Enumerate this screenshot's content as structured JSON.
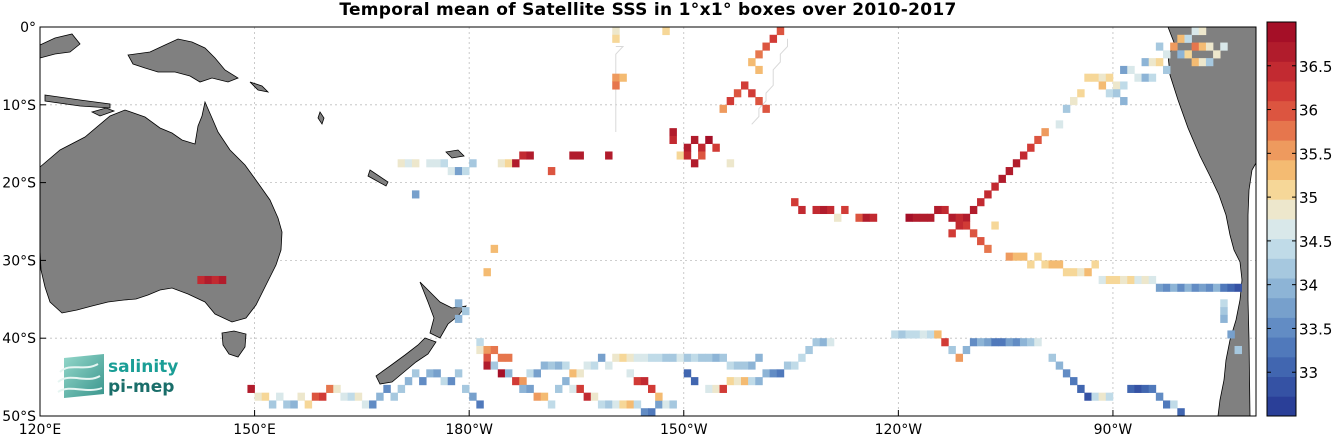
{
  "title": "Temporal mean of Satellite SSS in 1°x1° boxes over 2010-2017",
  "map": {
    "lon_range": [
      120,
      290
    ],
    "lat_range": [
      -50,
      0
    ],
    "x_ticks": [
      {
        "lon": 120,
        "label": "120°E"
      },
      {
        "lon": 150,
        "label": "150°E"
      },
      {
        "lon": 180,
        "label": "180°W"
      },
      {
        "lon": 210,
        "label": "150°W"
      },
      {
        "lon": 240,
        "label": "120°W"
      },
      {
        "lon": 270,
        "label": "90°W"
      }
    ],
    "y_ticks": [
      {
        "lat": 0,
        "label": "0°"
      },
      {
        "lat": -10,
        "label": "10°S"
      },
      {
        "lat": -20,
        "label": "20°S"
      },
      {
        "lat": -30,
        "label": "30°S"
      },
      {
        "lat": -40,
        "label": "40°S"
      },
      {
        "lat": -50,
        "label": "50°S"
      }
    ],
    "grid": true,
    "land_color": "#808080",
    "ocean_color": "#ffffff"
  },
  "colorbar": {
    "min": 32.5,
    "max": 37.0,
    "ticks": [
      "33",
      "33.5",
      "34",
      "34.5",
      "35",
      "35.5",
      "36",
      "36.5"
    ],
    "colors": [
      "#2a3f98",
      "#3552a4",
      "#4166b0",
      "#5079bb",
      "#628cc4",
      "#77a0cc",
      "#8db4d6",
      "#a6c8df",
      "#c0dbe8",
      "#d9e8ea",
      "#ede7cc",
      "#f6d798",
      "#f4bb72",
      "#ee9a5e",
      "#e6764d",
      "#dc5540",
      "#d13b36",
      "#c22a31",
      "#b11c2c",
      "#a50f27"
    ]
  },
  "logo": {
    "line1": "salinity",
    "line2": "pi-mep"
  },
  "tracks": [
    [
      [
        122.5,
        -1.5
      ],
      [
        123.5,
        -1.5
      ]
    ],
    [
      [
        200.5,
        -2.5
      ],
      [
        201.5,
        -2.5
      ],
      [
        200.5,
        -3.5
      ],
      [
        200.5,
        -4.5
      ],
      [
        200.5,
        -5.5
      ],
      [
        200.5,
        -6.5
      ],
      [
        200.5,
        -7.5
      ],
      [
        200.5,
        -8.5
      ],
      [
        200.5,
        -9.5
      ],
      [
        200.5,
        -10.5
      ],
      [
        200.5,
        -11.5
      ],
      [
        200.5,
        -12.5
      ],
      [
        200.5,
        -13.5
      ]
    ],
    [
      [
        224.5,
        -1.5
      ],
      [
        224.5,
        -2.5
      ],
      [
        223.5,
        -3.5
      ],
      [
        223.5,
        -4.5
      ],
      [
        222.5,
        -5.5
      ],
      [
        222.5,
        -6.5
      ],
      [
        222.5,
        -7.5
      ],
      [
        221.5,
        -8.5
      ],
      [
        221.5,
        -9.5
      ],
      [
        220.5,
        -10.5
      ],
      [
        220.5,
        -11.5
      ],
      [
        219.5,
        -12.5
      ]
    ]
  ],
  "cells": [
    [
      200.5,
      -0.5,
      34.9
    ],
    [
      200.5,
      -1.5,
      35.1
    ],
    [
      207.5,
      -0.5,
      35.0
    ],
    [
      200.5,
      -6.5,
      35.6
    ],
    [
      200.5,
      -7.5,
      35.8
    ],
    [
      201.5,
      -6.5,
      35.4
    ],
    [
      223.5,
      -0.5,
      36.0
    ],
    [
      222.5,
      -1.5,
      36.1
    ],
    [
      221.5,
      -2.5,
      36.0
    ],
    [
      220.5,
      -3.5,
      35.7
    ],
    [
      219.5,
      -4.5,
      35.2
    ],
    [
      220.5,
      -5.5,
      35.4
    ],
    [
      218.5,
      -7.5,
      36.1
    ],
    [
      217.5,
      -8.5,
      36.0
    ],
    [
      216.5,
      -9.5,
      36.2
    ],
    [
      215.5,
      -10.5,
      35.6
    ],
    [
      219.5,
      -8.5,
      36.3
    ],
    [
      220.5,
      -9.5,
      35.9
    ],
    [
      221.5,
      -10.5,
      36.0
    ],
    [
      208.5,
      -13.5,
      36.6
    ],
    [
      208.5,
      -14.5,
      36.5
    ],
    [
      210.5,
      -15.5,
      36.6
    ],
    [
      211.5,
      -14.5,
      36.7
    ],
    [
      212.5,
      -15.5,
      36.4
    ],
    [
      213.5,
      -14.5,
      36.8
    ],
    [
      214.5,
      -15.5,
      36.3
    ],
    [
      209.5,
      -16.5,
      35.0
    ],
    [
      210.5,
      -16.5,
      36.5
    ],
    [
      211.5,
      -17.5,
      36.6
    ],
    [
      212.5,
      -16.5,
      35.9
    ],
    [
      216.5,
      -17.5,
      34.9
    ],
    [
      187.5,
      -16.5,
      36.5
    ],
    [
      188.5,
      -16.5,
      36.6
    ],
    [
      194.5,
      -16.5,
      36.6
    ],
    [
      195.5,
      -16.5,
      36.7
    ],
    [
      199.5,
      -16.5,
      36.6
    ],
    [
      184.5,
      -17.5,
      34.9
    ],
    [
      185.5,
      -17.5,
      35.1
    ],
    [
      186.5,
      -17.5,
      36.6
    ],
    [
      191.5,
      -18.5,
      35.9
    ],
    [
      170.5,
      -17.5,
      34.8
    ],
    [
      171.5,
      -17.5,
      34.7
    ],
    [
      172.5,
      -17.5,
      34.9
    ],
    [
      174.5,
      -17.5,
      34.7
    ],
    [
      175.5,
      -17.5,
      34.6
    ],
    [
      176.5,
      -17.5,
      34.5
    ],
    [
      177.5,
      -18.5,
      34.6
    ],
    [
      178.5,
      -18.5,
      33.7
    ],
    [
      179.5,
      -18.5,
      34.4
    ],
    [
      180.5,
      -17.5,
      34.3
    ],
    [
      172.5,
      -21.5,
      33.8
    ],
    [
      281.5,
      -0.5,
      34.7
    ],
    [
      282.5,
      -0.5,
      34.9
    ],
    [
      279.5,
      -1.5,
      35.3
    ],
    [
      280.5,
      -1.5,
      34.4
    ],
    [
      281.5,
      -2.5,
      35.7
    ],
    [
      282.5,
      -2.5,
      35.2
    ],
    [
      283.5,
      -2.5,
      34.8
    ],
    [
      276.5,
      -2.5,
      34.2
    ],
    [
      277.5,
      -3.5,
      34.6
    ],
    [
      278.5,
      -2.5,
      35.5
    ],
    [
      279.5,
      -3.5,
      34.0
    ],
    [
      280.5,
      -3.5,
      35.0
    ],
    [
      284.5,
      -3.5,
      34.9
    ],
    [
      285.5,
      -2.5,
      34.6
    ],
    [
      274.5,
      -4.5,
      33.9
    ],
    [
      275.5,
      -4.5,
      34.8
    ],
    [
      276.5,
      -4.5,
      35.1
    ],
    [
      277.5,
      -5.5,
      34.3
    ],
    [
      281.5,
      -4.5,
      35.4
    ],
    [
      282.5,
      -4.5,
      34.9
    ],
    [
      283.5,
      -4.5,
      34.2
    ],
    [
      271.5,
      -5.5,
      33.7
    ],
    [
      272.5,
      -5.5,
      34.7
    ],
    [
      273.5,
      -6.5,
      34.6
    ],
    [
      274.5,
      -6.5,
      34.0
    ],
    [
      275.5,
      -6.5,
      34.4
    ],
    [
      266.5,
      -6.5,
      35.1
    ],
    [
      267.5,
      -6.5,
      35.0
    ],
    [
      268.5,
      -6.5,
      34.9
    ],
    [
      269.5,
      -6.5,
      35.0
    ],
    [
      270.5,
      -7.5,
      34.8
    ],
    [
      271.5,
      -7.5,
      34.4
    ],
    [
      268.5,
      -7.5,
      35.2
    ],
    [
      269.5,
      -8.5,
      34.5
    ],
    [
      270.5,
      -8.5,
      34.1
    ],
    [
      271.5,
      -9.5,
      33.9
    ],
    [
      265.5,
      -8.5,
      35.0
    ],
    [
      264.5,
      -9.5,
      34.8
    ],
    [
      263.5,
      -10.5,
      34.3
    ],
    [
      262.5,
      -12.5,
      34.6
    ],
    [
      260.5,
      -13.5,
      35.6
    ],
    [
      259.5,
      -14.5,
      36.0
    ],
    [
      258.5,
      -15.5,
      36.3
    ],
    [
      257.5,
      -16.5,
      36.5
    ],
    [
      256.5,
      -17.5,
      36.6
    ],
    [
      255.5,
      -18.5,
      36.7
    ],
    [
      254.5,
      -19.5,
      36.6
    ],
    [
      253.5,
      -20.5,
      36.5
    ],
    [
      252.5,
      -21.5,
      36.4
    ],
    [
      251.5,
      -22.5,
      36.5
    ],
    [
      250.5,
      -23.5,
      36.7
    ],
    [
      249.5,
      -24.5,
      36.6
    ],
    [
      248.5,
      -24.5,
      36.5
    ],
    [
      247.5,
      -24.5,
      36.6
    ],
    [
      246.5,
      -23.5,
      36.5
    ],
    [
      245.5,
      -23.5,
      36.7
    ],
    [
      244.5,
      -24.5,
      36.6
    ],
    [
      243.5,
      -24.5,
      36.7
    ],
    [
      242.5,
      -24.5,
      36.6
    ],
    [
      241.5,
      -24.5,
      36.8
    ],
    [
      249.5,
      -25.5,
      36.2
    ],
    [
      250.5,
      -26.5,
      36.0
    ],
    [
      251.5,
      -27.5,
      35.9
    ],
    [
      252.5,
      -28.5,
      35.8
    ],
    [
      248.5,
      -25.5,
      36.4
    ],
    [
      247.5,
      -26.5,
      36.3
    ],
    [
      253.5,
      -25.5,
      35.1
    ],
    [
      232.5,
      -23.5,
      36.3
    ],
    [
      230.5,
      -23.5,
      36.5
    ],
    [
      229.5,
      -23.5,
      36.6
    ],
    [
      228.5,
      -23.5,
      36.4
    ],
    [
      225.5,
      -22.5,
      36.2
    ],
    [
      226.5,
      -23.5,
      36.5
    ],
    [
      231.5,
      -24.5,
      34.8
    ],
    [
      234.5,
      -24.5,
      35.9
    ],
    [
      235.5,
      -24.5,
      36.7
    ],
    [
      236.5,
      -24.5,
      36.4
    ],
    [
      255.5,
      -29.5,
      35.6
    ],
    [
      256.5,
      -29.5,
      35.4
    ],
    [
      257.5,
      -29.5,
      35.2
    ],
    [
      258.5,
      -30.5,
      35.0
    ],
    [
      259.5,
      -29.5,
      35.1
    ],
    [
      260.5,
      -30.5,
      35.1
    ],
    [
      261.5,
      -30.5,
      35.3
    ],
    [
      262.5,
      -30.5,
      35.2
    ],
    [
      263.5,
      -31.5,
      35.0
    ],
    [
      264.5,
      -31.5,
      35.1
    ],
    [
      265.5,
      -31.5,
      34.9
    ],
    [
      266.5,
      -31.5,
      35.2
    ],
    [
      267.5,
      -30.5,
      35.0
    ],
    [
      268.5,
      -32.5,
      34.7
    ],
    [
      269.5,
      -32.5,
      35.0
    ],
    [
      270.5,
      -32.5,
      35.1
    ],
    [
      271.5,
      -32.5,
      34.9
    ],
    [
      272.5,
      -32.5,
      35.0
    ],
    [
      273.5,
      -32.5,
      34.6
    ],
    [
      274.5,
      -32.5,
      34.9
    ],
    [
      275.5,
      -32.5,
      34.6
    ],
    [
      276.5,
      -33.5,
      33.8
    ],
    [
      277.5,
      -33.5,
      33.6
    ],
    [
      278.5,
      -33.5,
      33.9
    ],
    [
      279.5,
      -33.5,
      33.6
    ],
    [
      280.5,
      -33.5,
      33.9
    ],
    [
      281.5,
      -33.5,
      33.5
    ],
    [
      282.5,
      -33.5,
      33.7
    ],
    [
      283.5,
      -33.5,
      33.6
    ],
    [
      284.5,
      -33.5,
      33.9
    ],
    [
      285.5,
      -33.5,
      33.3
    ],
    [
      286.5,
      -33.5,
      33.0
    ],
    [
      287.5,
      -33.5,
      32.8
    ],
    [
      285.5,
      -35.5,
      34.4
    ],
    [
      285.5,
      -36.5,
      34.1
    ],
    [
      285.5,
      -37.5,
      33.9
    ],
    [
      286.5,
      -39.5,
      33.7
    ],
    [
      287.5,
      -41.5,
      34.3
    ],
    [
      142.5,
      -32.5,
      36.5
    ],
    [
      143.5,
      -32.5,
      36.6
    ],
    [
      144.5,
      -32.5,
      36.5
    ],
    [
      145.5,
      -32.5,
      36.7
    ],
    [
      183.5,
      -28.5,
      35.2
    ],
    [
      182.5,
      -31.5,
      35.4
    ],
    [
      178.5,
      -35.5,
      34.0
    ],
    [
      179.5,
      -36.5,
      34.2
    ],
    [
      178.5,
      -37.5,
      33.9
    ],
    [
      149.5,
      -46.5,
      36.6
    ],
    [
      150.5,
      -47.5,
      34.9
    ],
    [
      151.5,
      -47.5,
      35.0
    ],
    [
      152.5,
      -48.5,
      34.3
    ],
    [
      153.5,
      -47.5,
      34.6
    ],
    [
      154.5,
      -48.5,
      34.2
    ],
    [
      155.5,
      -48.5,
      34.0
    ],
    [
      156.5,
      -47.5,
      34.9
    ],
    [
      157.5,
      -48.5,
      35.1
    ],
    [
      158.5,
      -47.5,
      36.0
    ],
    [
      159.5,
      -47.5,
      36.2
    ],
    [
      160.5,
      -46.5,
      35.7
    ],
    [
      161.5,
      -46.5,
      34.9
    ],
    [
      162.5,
      -47.5,
      34.7
    ],
    [
      163.5,
      -47.5,
      34.5
    ],
    [
      164.5,
      -47.5,
      34.8
    ],
    [
      165.5,
      -48.5,
      34.6
    ],
    [
      166.5,
      -48.5,
      33.5
    ],
    [
      167.5,
      -47.5,
      34.0
    ],
    [
      168.5,
      -46.5,
      33.6
    ],
    [
      169.5,
      -47.5,
      34.3
    ],
    [
      170.5,
      -46.5,
      34.1
    ],
    [
      171.5,
      -45.5,
      33.9
    ],
    [
      172.5,
      -44.5,
      34.2
    ],
    [
      173.5,
      -45.5,
      33.5
    ],
    [
      174.5,
      -44.5,
      34.0
    ],
    [
      175.5,
      -44.5,
      33.7
    ],
    [
      176.5,
      -45.5,
      34.5
    ],
    [
      177.5,
      -45.5,
      33.6
    ],
    [
      178.5,
      -44.5,
      34.2
    ],
    [
      179.5,
      -46.5,
      34.3
    ],
    [
      180.5,
      -47.5,
      33.8
    ],
    [
      181.5,
      -48.5,
      33.4
    ],
    [
      181.5,
      -40.5,
      34.4
    ],
    [
      181.5,
      -41.5,
      34.8
    ],
    [
      182.5,
      -41.5,
      35.6
    ],
    [
      183.5,
      -41.5,
      35.7
    ],
    [
      184.5,
      -42.5,
      35.8
    ],
    [
      185.5,
      -42.5,
      35.7
    ],
    [
      182.5,
      -42.5,
      35.9
    ],
    [
      182.5,
      -43.5,
      36.6
    ],
    [
      183.5,
      -43.5,
      34.2
    ],
    [
      184.5,
      -44.5,
      36.8
    ],
    [
      185.5,
      -44.5,
      34.0
    ],
    [
      186.5,
      -45.5,
      36.2
    ],
    [
      187.5,
      -45.5,
      35.6
    ],
    [
      188.5,
      -44.5,
      34.5
    ],
    [
      189.5,
      -44.5,
      33.8
    ],
    [
      190.5,
      -43.5,
      34.0
    ],
    [
      191.5,
      -43.5,
      34.2
    ],
    [
      192.5,
      -43.5,
      33.9
    ],
    [
      193.5,
      -43.5,
      34.4
    ],
    [
      194.5,
      -44.5,
      35.4
    ],
    [
      195.5,
      -44.5,
      34.9
    ],
    [
      196.5,
      -43.5,
      34.7
    ],
    [
      197.5,
      -43.5,
      34.5
    ],
    [
      198.5,
      -42.5,
      33.8
    ],
    [
      199.5,
      -43.5,
      34.6
    ],
    [
      200.5,
      -42.5,
      34.9
    ],
    [
      201.5,
      -42.5,
      35.1
    ],
    [
      202.5,
      -42.5,
      34.8
    ],
    [
      203.5,
      -42.5,
      34.6
    ],
    [
      204.5,
      -42.5,
      34.7
    ],
    [
      205.5,
      -42.5,
      34.5
    ],
    [
      206.5,
      -42.5,
      34.4
    ],
    [
      207.5,
      -42.5,
      34.3
    ],
    [
      208.5,
      -42.5,
      34.2
    ],
    [
      209.5,
      -42.5,
      34.6
    ],
    [
      210.5,
      -42.5,
      34.3
    ],
    [
      211.5,
      -42.5,
      34.5
    ],
    [
      212.5,
      -42.5,
      34.2
    ],
    [
      213.5,
      -42.5,
      34.1
    ],
    [
      214.5,
      -42.5,
      34.0
    ],
    [
      215.5,
      -42.5,
      34.3
    ],
    [
      216.5,
      -43.5,
      34.4
    ],
    [
      217.5,
      -43.5,
      34.2
    ],
    [
      218.5,
      -43.5,
      34.1
    ],
    [
      219.5,
      -43.5,
      34.0
    ],
    [
      220.5,
      -42.5,
      33.9
    ],
    [
      187.5,
      -46.5,
      34.0
    ],
    [
      188.5,
      -46.5,
      33.7
    ],
    [
      189.5,
      -47.5,
      35.5
    ],
    [
      190.5,
      -47.5,
      35.2
    ],
    [
      191.5,
      -48.5,
      34.4
    ],
    [
      192.5,
      -46.5,
      34.3
    ],
    [
      193.5,
      -45.5,
      33.9
    ],
    [
      194.5,
      -46.5,
      34.6
    ],
    [
      195.5,
      -46.5,
      36.3
    ],
    [
      196.5,
      -47.5,
      36.4
    ],
    [
      197.5,
      -47.5,
      34.8
    ],
    [
      198.5,
      -48.5,
      34.5
    ],
    [
      199.5,
      -48.5,
      34.3
    ],
    [
      200.5,
      -48.5,
      34.6
    ],
    [
      201.5,
      -48.5,
      35.0
    ],
    [
      202.5,
      -48.5,
      35.3
    ],
    [
      203.5,
      -48.5,
      34.4
    ],
    [
      204.5,
      -49.5,
      33.5
    ],
    [
      205.5,
      -49.5,
      33.3
    ],
    [
      206.5,
      -48.5,
      33.8
    ],
    [
      207.5,
      -48.5,
      34.7
    ],
    [
      208.5,
      -48.5,
      34.3
    ],
    [
      202.5,
      -44.5,
      34.6
    ],
    [
      203.5,
      -45.5,
      36.2
    ],
    [
      204.5,
      -45.5,
      36.4
    ],
    [
      205.5,
      -46.5,
      36.3
    ],
    [
      206.5,
      -47.5,
      35.3
    ],
    [
      210.5,
      -44.5,
      33.1
    ],
    [
      211.5,
      -45.5,
      33.0
    ],
    [
      213.5,
      -46.5,
      34.7
    ],
    [
      214.5,
      -46.5,
      34.9
    ],
    [
      215.5,
      -46.5,
      36.2
    ],
    [
      216.5,
      -45.5,
      35.0
    ],
    [
      217.5,
      -45.5,
      34.8
    ],
    [
      218.5,
      -45.5,
      35.2
    ],
    [
      219.5,
      -45.5,
      34.4
    ],
    [
      220.5,
      -45.5,
      34.0
    ],
    [
      221.5,
      -44.5,
      33.9
    ],
    [
      222.5,
      -44.5,
      33.6
    ],
    [
      223.5,
      -44.5,
      33.3
    ],
    [
      224.5,
      -43.5,
      34.2
    ],
    [
      225.5,
      -43.5,
      34.4
    ],
    [
      226.5,
      -42.5,
      34.5
    ],
    [
      227.5,
      -41.5,
      34.3
    ],
    [
      228.5,
      -40.5,
      34.1
    ],
    [
      229.5,
      -40.5,
      34.0
    ],
    [
      230.5,
      -40.5,
      34.7
    ],
    [
      239.5,
      -39.5,
      34.5
    ],
    [
      240.5,
      -39.5,
      34.3
    ],
    [
      241.5,
      -39.5,
      34.4
    ],
    [
      242.5,
      -39.5,
      34.5
    ],
    [
      243.5,
      -39.5,
      34.6
    ],
    [
      244.5,
      -39.5,
      34.4
    ],
    [
      245.5,
      -39.5,
      35.4
    ],
    [
      246.5,
      -40.5,
      36.1
    ],
    [
      247.5,
      -41.5,
      34.3
    ],
    [
      248.5,
      -42.5,
      35.5
    ],
    [
      249.5,
      -41.5,
      34.0
    ],
    [
      250.5,
      -40.5,
      33.6
    ],
    [
      251.5,
      -40.5,
      33.9
    ],
    [
      252.5,
      -40.5,
      33.7
    ],
    [
      253.5,
      -40.5,
      33.4
    ],
    [
      254.5,
      -40.5,
      33.2
    ],
    [
      255.5,
      -40.5,
      33.8
    ],
    [
      256.5,
      -40.5,
      33.5
    ],
    [
      257.5,
      -40.5,
      34.0
    ],
    [
      258.5,
      -40.5,
      34.3
    ],
    [
      259.5,
      -40.5,
      34.6
    ],
    [
      261.5,
      -42.5,
      34.1
    ],
    [
      262.5,
      -43.5,
      33.9
    ],
    [
      263.5,
      -44.5,
      33.6
    ],
    [
      264.5,
      -45.5,
      33.2
    ],
    [
      265.5,
      -46.5,
      33.0
    ],
    [
      266.5,
      -47.5,
      32.9
    ],
    [
      267.5,
      -47.5,
      34.4
    ],
    [
      268.5,
      -47.5,
      34.8
    ],
    [
      269.5,
      -47.5,
      34.5
    ],
    [
      272.5,
      -46.5,
      33.0
    ],
    [
      273.5,
      -46.5,
      32.8
    ],
    [
      274.5,
      -46.5,
      33.1
    ],
    [
      275.5,
      -46.5,
      33.3
    ],
    [
      276.5,
      -47.5,
      33.6
    ],
    [
      277.5,
      -48.5,
      33.2
    ],
    [
      278.5,
      -48.5,
      34.4
    ],
    [
      279.5,
      -49.5,
      33.0
    ]
  ]
}
